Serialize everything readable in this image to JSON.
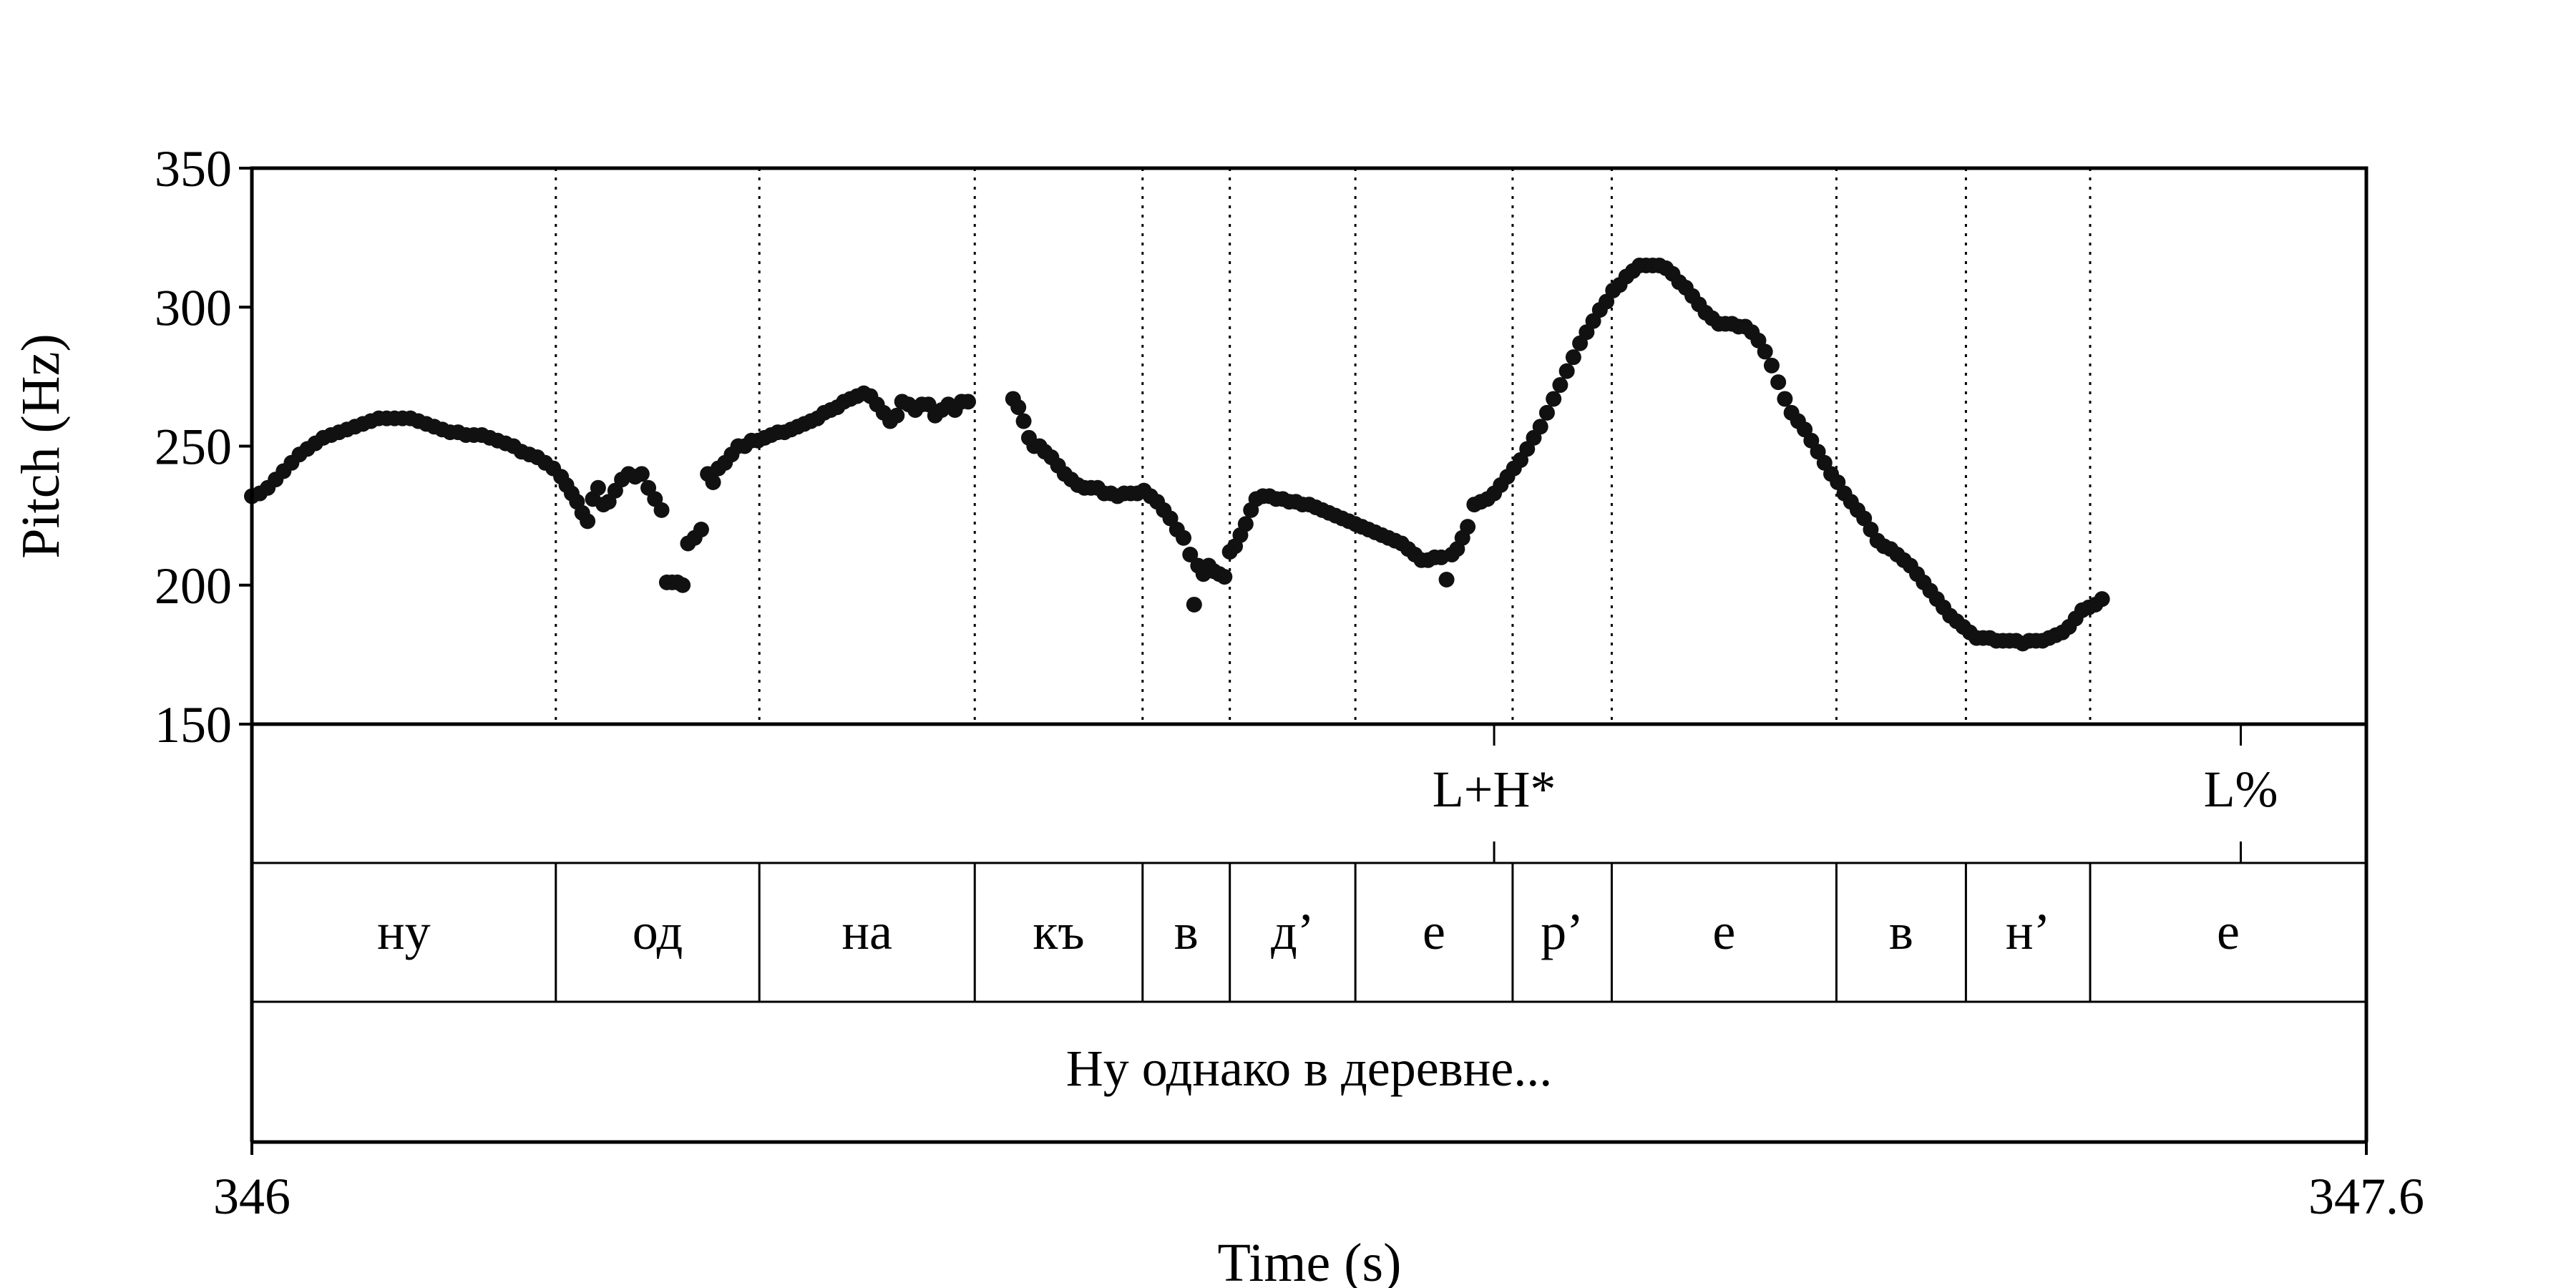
{
  "chart_data": {
    "type": "scatter",
    "ylabel": "Pitch (Hz)",
    "xlabel": "Time (s)",
    "xlim": [
      346,
      347.6
    ],
    "ylim": [
      150,
      350
    ],
    "y_ticks": [
      "350",
      "300",
      "250",
      "200",
      "150"
    ],
    "x_ticks": [
      "346",
      "347.6"
    ],
    "series": [
      {
        "points": [
          [
            346.0,
            232
          ],
          [
            346.006,
            233
          ],
          [
            346.012,
            235
          ],
          [
            346.018,
            238
          ],
          [
            346.024,
            241
          ],
          [
            346.03,
            244
          ],
          [
            346.036,
            247
          ],
          [
            346.042,
            249
          ],
          [
            346.048,
            251
          ],
          [
            346.054,
            253
          ],
          [
            346.06,
            254
          ],
          [
            346.066,
            255
          ],
          [
            346.072,
            256
          ],
          [
            346.078,
            257
          ],
          [
            346.084,
            258
          ],
          [
            346.09,
            259
          ],
          [
            346.096,
            260
          ],
          [
            346.102,
            260
          ],
          [
            346.108,
            260
          ],
          [
            346.114,
            260
          ],
          [
            346.12,
            260
          ],
          [
            346.126,
            259
          ],
          [
            346.132,
            258
          ],
          [
            346.138,
            257
          ],
          [
            346.144,
            256
          ],
          [
            346.15,
            255
          ],
          [
            346.156,
            255
          ],
          [
            346.162,
            254
          ],
          [
            346.168,
            254
          ],
          [
            346.174,
            254
          ],
          [
            346.18,
            253
          ],
          [
            346.186,
            252
          ],
          [
            346.192,
            251
          ],
          [
            346.198,
            250
          ],
          [
            346.204,
            248
          ],
          [
            346.21,
            247
          ],
          [
            346.216,
            246
          ],
          [
            346.222,
            244
          ],
          [
            346.228,
            242
          ],
          [
            346.234,
            239
          ],
          [
            346.238,
            236
          ],
          [
            346.242,
            233
          ],
          [
            346.246,
            230
          ],
          [
            346.25,
            226
          ],
          [
            346.254,
            223
          ],
          [
            346.258,
            231
          ],
          [
            346.262,
            235
          ],
          [
            346.266,
            229
          ],
          [
            346.27,
            230
          ],
          [
            346.275,
            234
          ],
          [
            346.28,
            238
          ],
          [
            346.285,
            240
          ],
          [
            346.29,
            239
          ],
          [
            346.295,
            240
          ],
          [
            346.3,
            235
          ],
          [
            346.305,
            231
          ],
          [
            346.31,
            227
          ],
          [
            346.314,
            201
          ],
          [
            346.318,
            201
          ],
          [
            346.322,
            201
          ],
          [
            346.326,
            200
          ],
          [
            346.33,
            215
          ],
          [
            346.335,
            217
          ],
          [
            346.34,
            220
          ],
          [
            346.345,
            240
          ],
          [
            346.349,
            237
          ],
          [
            346.353,
            242
          ],
          [
            346.358,
            244
          ],
          [
            346.363,
            247
          ],
          [
            346.368,
            250
          ],
          [
            346.373,
            250
          ],
          [
            346.378,
            252
          ],
          [
            346.383,
            252
          ],
          [
            346.388,
            253
          ],
          [
            346.393,
            254
          ],
          [
            346.398,
            255
          ],
          [
            346.403,
            255
          ],
          [
            346.408,
            256
          ],
          [
            346.413,
            257
          ],
          [
            346.418,
            258
          ],
          [
            346.423,
            259
          ],
          [
            346.428,
            260
          ],
          [
            346.433,
            262
          ],
          [
            346.438,
            263
          ],
          [
            346.443,
            264
          ],
          [
            346.448,
            266
          ],
          [
            346.453,
            267
          ],
          [
            346.458,
            268
          ],
          [
            346.463,
            269
          ],
          [
            346.468,
            268
          ],
          [
            346.473,
            265
          ],
          [
            346.478,
            262
          ],
          [
            346.483,
            259
          ],
          [
            346.488,
            261
          ],
          [
            346.492,
            266
          ],
          [
            346.497,
            265
          ],
          [
            346.502,
            263
          ],
          [
            346.507,
            265
          ],
          [
            346.512,
            265
          ],
          [
            346.517,
            261
          ],
          [
            346.522,
            263
          ],
          [
            346.527,
            265
          ],
          [
            346.532,
            263
          ],
          [
            346.537,
            266
          ],
          [
            346.542,
            266
          ],
          [
            346.576,
            267
          ],
          [
            346.58,
            264
          ],
          [
            346.584,
            259
          ],
          [
            346.588,
            253
          ],
          [
            346.592,
            250
          ],
          [
            346.596,
            250
          ],
          [
            346.6,
            248
          ],
          [
            346.605,
            246
          ],
          [
            346.61,
            243
          ],
          [
            346.615,
            240
          ],
          [
            346.62,
            238
          ],
          [
            346.625,
            236
          ],
          [
            346.63,
            235
          ],
          [
            346.635,
            235
          ],
          [
            346.64,
            235
          ],
          [
            346.645,
            233
          ],
          [
            346.65,
            233
          ],
          [
            346.655,
            232
          ],
          [
            346.66,
            233
          ],
          [
            346.665,
            233
          ],
          [
            346.67,
            233
          ],
          [
            346.675,
            234
          ],
          [
            346.68,
            232
          ],
          [
            346.685,
            230
          ],
          [
            346.69,
            227
          ],
          [
            346.695,
            224
          ],
          [
            346.7,
            220
          ],
          [
            346.705,
            217
          ],
          [
            346.71,
            211
          ],
          [
            346.713,
            193
          ],
          [
            346.716,
            207
          ],
          [
            346.72,
            204
          ],
          [
            346.724,
            207
          ],
          [
            346.728,
            205
          ],
          [
            346.732,
            204
          ],
          [
            346.736,
            203
          ],
          [
            346.74,
            212
          ],
          [
            346.744,
            214
          ],
          [
            346.748,
            218
          ],
          [
            346.752,
            222
          ],
          [
            346.756,
            227
          ],
          [
            346.76,
            231
          ],
          [
            346.765,
            232
          ],
          [
            346.77,
            232
          ],
          [
            346.775,
            231
          ],
          [
            346.78,
            231
          ],
          [
            346.785,
            230
          ],
          [
            346.79,
            230
          ],
          [
            346.795,
            229
          ],
          [
            346.8,
            229
          ],
          [
            346.805,
            228
          ],
          [
            346.81,
            227
          ],
          [
            346.815,
            226
          ],
          [
            346.82,
            225
          ],
          [
            346.825,
            224
          ],
          [
            346.83,
            223
          ],
          [
            346.835,
            222
          ],
          [
            346.84,
            221
          ],
          [
            346.845,
            220
          ],
          [
            346.85,
            219
          ],
          [
            346.855,
            218
          ],
          [
            346.86,
            217
          ],
          [
            346.865,
            216
          ],
          [
            346.87,
            215
          ],
          [
            346.875,
            213
          ],
          [
            346.88,
            211
          ],
          [
            346.885,
            209
          ],
          [
            346.89,
            209
          ],
          [
            346.895,
            210
          ],
          [
            346.9,
            210
          ],
          [
            346.904,
            202
          ],
          [
            346.908,
            211
          ],
          [
            346.912,
            213
          ],
          [
            346.916,
            217
          ],
          [
            346.92,
            221
          ],
          [
            346.925,
            229
          ],
          [
            346.93,
            230
          ],
          [
            346.935,
            231
          ],
          [
            346.94,
            233
          ],
          [
            346.945,
            236
          ],
          [
            346.95,
            239
          ],
          [
            346.955,
            242
          ],
          [
            346.96,
            245
          ],
          [
            346.965,
            249
          ],
          [
            346.97,
            253
          ],
          [
            346.975,
            257
          ],
          [
            346.98,
            262
          ],
          [
            346.985,
            267
          ],
          [
            346.99,
            272
          ],
          [
            346.995,
            277
          ],
          [
            347.0,
            282
          ],
          [
            347.005,
            287
          ],
          [
            347.01,
            291
          ],
          [
            347.015,
            295
          ],
          [
            347.02,
            299
          ],
          [
            347.025,
            302
          ],
          [
            347.03,
            306
          ],
          [
            347.035,
            308
          ],
          [
            347.04,
            311
          ],
          [
            347.045,
            313
          ],
          [
            347.05,
            315
          ],
          [
            347.055,
            315
          ],
          [
            347.06,
            315
          ],
          [
            347.065,
            315
          ],
          [
            347.07,
            314
          ],
          [
            347.075,
            312
          ],
          [
            347.08,
            309
          ],
          [
            347.085,
            307
          ],
          [
            347.09,
            304
          ],
          [
            347.095,
            301
          ],
          [
            347.1,
            298
          ],
          [
            347.105,
            296
          ],
          [
            347.11,
            294
          ],
          [
            347.115,
            294
          ],
          [
            347.12,
            294
          ],
          [
            347.125,
            293
          ],
          [
            347.13,
            293
          ],
          [
            347.135,
            291
          ],
          [
            347.14,
            288
          ],
          [
            347.145,
            284
          ],
          [
            347.15,
            279
          ],
          [
            347.155,
            273
          ],
          [
            347.16,
            267
          ],
          [
            347.165,
            262
          ],
          [
            347.17,
            259
          ],
          [
            347.175,
            256
          ],
          [
            347.18,
            252
          ],
          [
            347.185,
            248
          ],
          [
            347.19,
            244
          ],
          [
            347.195,
            240
          ],
          [
            347.2,
            237
          ],
          [
            347.205,
            233
          ],
          [
            347.21,
            230
          ],
          [
            347.215,
            227
          ],
          [
            347.22,
            224
          ],
          [
            347.225,
            220
          ],
          [
            347.23,
            216
          ],
          [
            347.235,
            214
          ],
          [
            347.24,
            213
          ],
          [
            347.245,
            211
          ],
          [
            347.25,
            209
          ],
          [
            347.255,
            207
          ],
          [
            347.26,
            204
          ],
          [
            347.265,
            201
          ],
          [
            347.27,
            198
          ],
          [
            347.275,
            195
          ],
          [
            347.28,
            192
          ],
          [
            347.285,
            189
          ],
          [
            347.29,
            187
          ],
          [
            347.295,
            185
          ],
          [
            347.3,
            183
          ],
          [
            347.305,
            181
          ],
          [
            347.31,
            181
          ],
          [
            347.315,
            181
          ],
          [
            347.32,
            180
          ],
          [
            347.325,
            180
          ],
          [
            347.33,
            180
          ],
          [
            347.335,
            180
          ],
          [
            347.34,
            179
          ],
          [
            347.345,
            180
          ],
          [
            347.35,
            180
          ],
          [
            347.355,
            180
          ],
          [
            347.36,
            181
          ],
          [
            347.365,
            182
          ],
          [
            347.37,
            183
          ],
          [
            347.375,
            185
          ],
          [
            347.38,
            188
          ],
          [
            347.385,
            191
          ],
          [
            347.39,
            192
          ],
          [
            347.395,
            193
          ],
          [
            347.4,
            195
          ]
        ]
      }
    ],
    "tones": [
      {
        "label": "L+H*",
        "time": 346.94
      },
      {
        "label": "L%",
        "time": 347.505
      }
    ],
    "segments": [
      {
        "label": "ну",
        "start": 346.0,
        "end": 346.23
      },
      {
        "label": "од",
        "start": 346.23,
        "end": 346.384
      },
      {
        "label": "на",
        "start": 346.384,
        "end": 346.547
      },
      {
        "label": "къ",
        "start": 346.547,
        "end": 346.674
      },
      {
        "label": "в",
        "start": 346.674,
        "end": 346.74
      },
      {
        "label": "д’",
        "start": 346.74,
        "end": 346.835
      },
      {
        "label": "е",
        "start": 346.835,
        "end": 346.954
      },
      {
        "label": "р’",
        "start": 346.954,
        "end": 347.029
      },
      {
        "label": "е",
        "start": 347.029,
        "end": 347.199
      },
      {
        "label": "в",
        "start": 347.199,
        "end": 347.297
      },
      {
        "label": "н’",
        "start": 347.297,
        "end": 347.391
      },
      {
        "label": "е",
        "start": 347.391,
        "end": 347.6
      }
    ],
    "sentence": "Ну однако в деревне...",
    "grid": "dotted vertical lines at segment boundaries",
    "colors": {
      "points": "#111111",
      "axes": "#000000"
    }
  }
}
